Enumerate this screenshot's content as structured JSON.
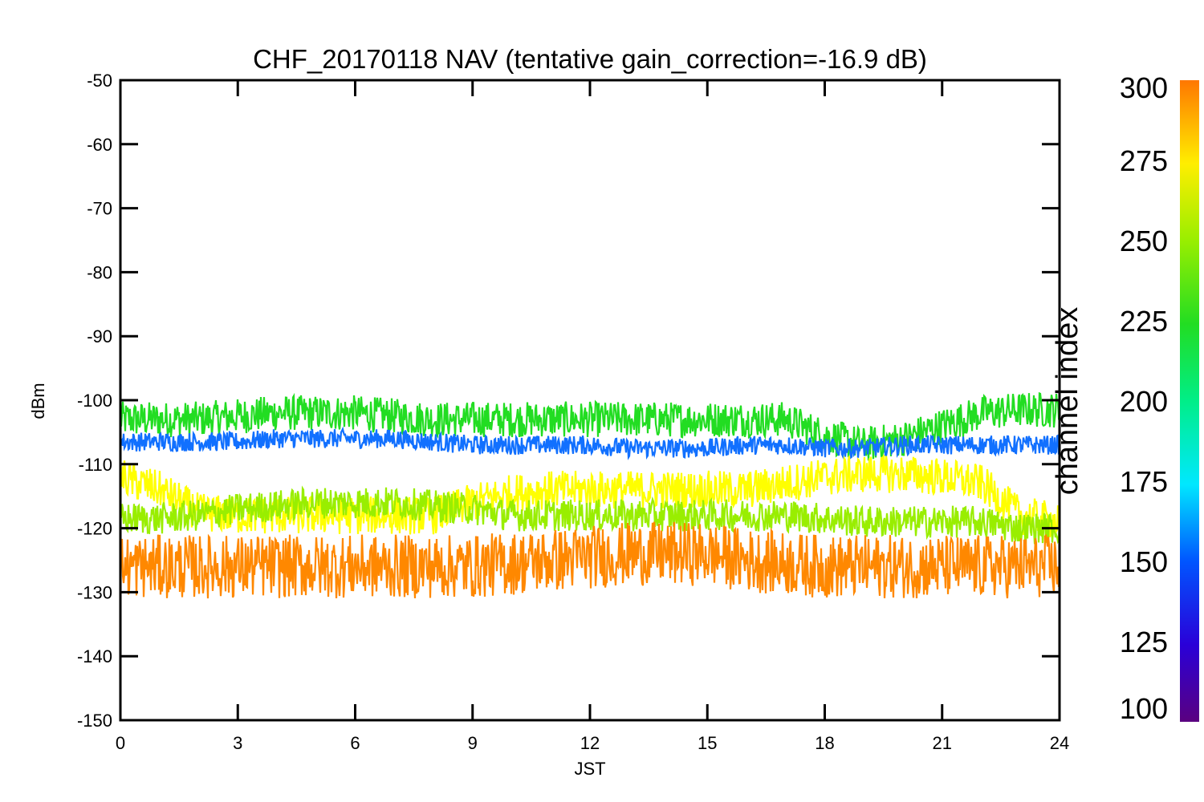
{
  "chart_data": {
    "type": "line",
    "title": "CHF_20170118 NAV (tentative gain_correction=-16.9 dB)",
    "xlabel": "JST",
    "ylabel": "dBm",
    "xlim": [
      0,
      24
    ],
    "ylim": [
      -150,
      -50
    ],
    "x_ticks": [
      "0",
      "3",
      "6",
      "9",
      "12",
      "15",
      "18",
      "21",
      "24"
    ],
    "y_ticks": [
      "-50",
      "-60",
      "-70",
      "-80",
      "-90",
      "-100",
      "-110",
      "-120",
      "-130",
      "-140",
      "-150"
    ],
    "colorbar": {
      "label": "channel index",
      "range": [
        100,
        300
      ],
      "ticks": [
        "300",
        "275",
        "250",
        "225",
        "200",
        "175",
        "150",
        "125",
        "100"
      ]
    },
    "x": [
      0,
      1,
      2,
      3,
      4,
      5,
      6,
      7,
      8,
      9,
      10,
      11,
      12,
      13,
      14,
      15,
      16,
      17,
      18,
      19,
      20,
      21,
      22,
      23,
      24
    ],
    "series": [
      {
        "channel": 220,
        "color": "#22dd22",
        "values": [
          -103,
          -103,
          -103,
          -102.5,
          -102,
          -102,
          -102,
          -102.5,
          -103,
          -103,
          -103,
          -103,
          -103,
          -103,
          -103,
          -103,
          -103,
          -103,
          -105.5,
          -107,
          -106,
          -104,
          -102,
          -101.5,
          -101.5
        ],
        "spread": 2.8
      },
      {
        "channel": 155,
        "color": "#1170ff",
        "values": [
          -106.5,
          -106.5,
          -106.5,
          -106.5,
          -106,
          -106,
          -106,
          -106,
          -106.5,
          -107,
          -107,
          -107,
          -107,
          -107.5,
          -107.5,
          -107.5,
          -107,
          -107,
          -107.5,
          -107.5,
          -107,
          -107,
          -107,
          -107,
          -107
        ],
        "spread": 1.5
      },
      {
        "channel": 270,
        "color": "#ffff00",
        "values": [
          -112,
          -114,
          -117.5,
          -118,
          -118,
          -118,
          -118,
          -118,
          -118,
          -116,
          -114.5,
          -114,
          -114,
          -114,
          -114,
          -114,
          -114,
          -113,
          -112,
          -111.5,
          -111.5,
          -112,
          -113,
          -118,
          -119
        ],
        "spread": 3
      },
      {
        "channel": 255,
        "color": "#99ee00",
        "values": [
          -118.5,
          -118.5,
          -118,
          -117,
          -116.5,
          -116,
          -116,
          -116,
          -116.5,
          -117,
          -118,
          -118,
          -118,
          -118,
          -118,
          -118,
          -118,
          -118,
          -118.5,
          -119,
          -119,
          -119,
          -119,
          -120,
          -120
        ],
        "spread": 2.5
      },
      {
        "channel": 290,
        "color": "#ff8800",
        "values": [
          -126,
          -126,
          -126,
          -126,
          -126,
          -126,
          -126,
          -126,
          -126,
          -126,
          -125.5,
          -125,
          -124.5,
          -124,
          -124,
          -124,
          -125,
          -125.5,
          -126,
          -126,
          -126,
          -126,
          -126,
          -126,
          -126
        ],
        "spread": 5
      }
    ],
    "grid": false,
    "legend": "none"
  }
}
